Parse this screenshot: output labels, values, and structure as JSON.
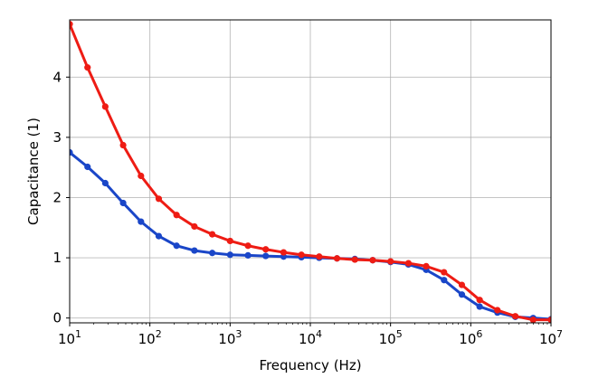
{
  "chart_data": {
    "type": "line",
    "xlabel": "Frequency (Hz)",
    "ylabel": "Capacitance (1)",
    "x_scale": "log",
    "xlim": [
      10,
      10000000
    ],
    "ylim": [
      -0.08,
      4.95
    ],
    "grid": true,
    "x_ticks": [
      {
        "value": 10,
        "base": "10",
        "exp": "1"
      },
      {
        "value": 100,
        "base": "10",
        "exp": "2"
      },
      {
        "value": 1000,
        "base": "10",
        "exp": "3"
      },
      {
        "value": 10000,
        "base": "10",
        "exp": "4"
      },
      {
        "value": 100000,
        "base": "10",
        "exp": "5"
      },
      {
        "value": 1000000,
        "base": "10",
        "exp": "6"
      },
      {
        "value": 10000000,
        "base": "10",
        "exp": "7"
      }
    ],
    "y_ticks": [
      {
        "value": 0,
        "label": "0"
      },
      {
        "value": 1,
        "label": "1"
      },
      {
        "value": 2,
        "label": "2"
      },
      {
        "value": 3,
        "label": "3"
      },
      {
        "value": 4,
        "label": "4"
      }
    ],
    "x": [
      10,
      16.7,
      27.8,
      46.4,
      77.4,
      129,
      215,
      359,
      599,
      1000,
      1670,
      2780,
      4640,
      7740,
      12900,
      21500,
      35900,
      59900,
      100000,
      167000,
      278000,
      464000,
      774000,
      1290000,
      2150000,
      3590000,
      5990000,
      10000000
    ],
    "series": [
      {
        "color": "#ee1c14",
        "values": [
          4.88,
          4.16,
          3.51,
          2.87,
          2.36,
          1.98,
          1.71,
          1.52,
          1.39,
          1.28,
          1.2,
          1.14,
          1.09,
          1.05,
          1.02,
          0.99,
          0.97,
          0.96,
          0.94,
          0.91,
          0.86,
          0.76,
          0.55,
          0.3,
          0.13,
          0.03,
          -0.03,
          -0.03
        ]
      },
      {
        "color": "#1a46c8",
        "values": [
          2.75,
          2.51,
          2.24,
          1.91,
          1.6,
          1.36,
          1.2,
          1.12,
          1.08,
          1.05,
          1.04,
          1.03,
          1.02,
          1.01,
          1.0,
          0.99,
          0.98,
          0.96,
          0.93,
          0.89,
          0.8,
          0.63,
          0.39,
          0.19,
          0.09,
          0.02,
          0.0,
          -0.02
        ]
      }
    ]
  }
}
